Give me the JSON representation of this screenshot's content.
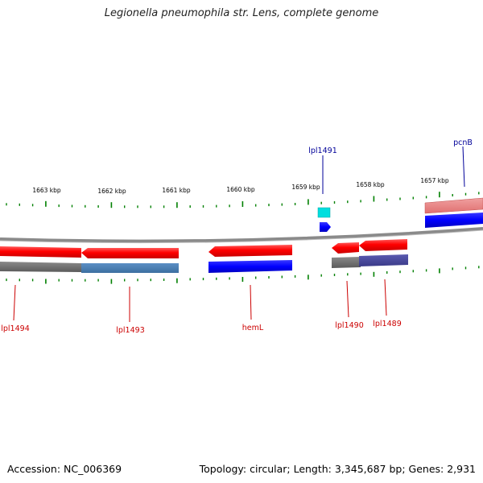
{
  "title": "Legionella pneumophila str. Lens, complete genome",
  "footer": {
    "accession": "Accession: NC_006369",
    "summary": "Topology: circular; Length: 3,345,687 bp; Genes: 2,931"
  },
  "ruler": {
    "labels": [
      "1663 kbp",
      "1662 kbp",
      "1661 kbp",
      "1660 kbp",
      "1659 kbp",
      "1658 kbp",
      "1657 kbp"
    ]
  },
  "gene_labels": {
    "top": [
      "lpl1491",
      "pcnB"
    ],
    "bottom": [
      "lpl1494",
      "lpl1493",
      "hemL",
      "lpl1490",
      "lpl1489"
    ]
  },
  "colors": {
    "cds": "#ff0000",
    "gene": "#0000ff",
    "trna": "#00e5e5",
    "backbone": "#888888",
    "tick": "#008000",
    "label_forward": "#000099",
    "label_reverse": "#cc0000"
  }
}
